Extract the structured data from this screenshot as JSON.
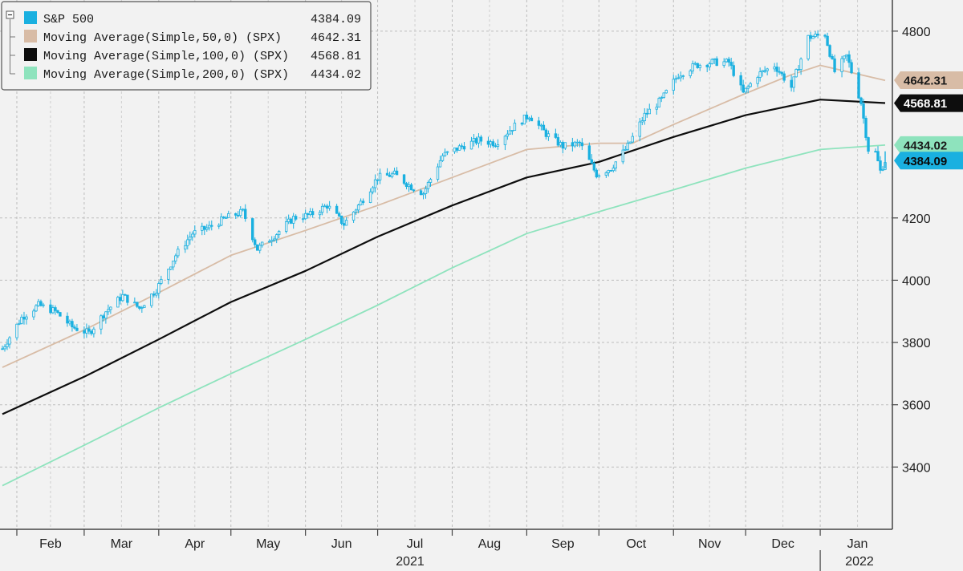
{
  "chart_data": {
    "type": "line",
    "ylim": [
      3200,
      4900
    ],
    "y_ticks": [
      3400,
      3600,
      3800,
      4000,
      4200,
      4800
    ],
    "grid": true,
    "legend_position": "top-left",
    "x_months": [
      {
        "label": "Feb",
        "x": "2021-02"
      },
      {
        "label": "Mar",
        "x": "2021-03"
      },
      {
        "label": "Apr",
        "x": "2021-04"
      },
      {
        "label": "May",
        "x": "2021-05"
      },
      {
        "label": "Jun",
        "x": "2021-06"
      },
      {
        "label": "Jul",
        "x": "2021-07"
      },
      {
        "label": "Aug",
        "x": "2021-08"
      },
      {
        "label": "Sep",
        "x": "2021-09"
      },
      {
        "label": "Oct",
        "x": "2021-10"
      },
      {
        "label": "Nov",
        "x": "2021-11"
      },
      {
        "label": "Dec",
        "x": "2021-12"
      },
      {
        "label": "Jan",
        "x": "2022-01"
      }
    ],
    "x_years": [
      {
        "label": "2021",
        "x": "2021-07"
      },
      {
        "label": "2022",
        "x": "2022-01"
      }
    ],
    "series": [
      {
        "name": "S&P 500",
        "last": "4384.09",
        "color": "#1ab0e0",
        "style": "candles",
        "x": [
          "2021-01-26",
          "2021-02-03",
          "2021-02-10",
          "2021-02-17",
          "2021-02-24",
          "2021-03-03",
          "2021-03-10",
          "2021-03-17",
          "2021-03-24",
          "2021-03-31",
          "2021-04-08",
          "2021-04-15",
          "2021-04-22",
          "2021-04-29",
          "2021-05-06",
          "2021-05-12",
          "2021-05-20",
          "2021-05-27",
          "2021-06-03",
          "2021-06-10",
          "2021-06-17",
          "2021-06-24",
          "2021-07-01",
          "2021-07-08",
          "2021-07-15",
          "2021-07-20",
          "2021-07-28",
          "2021-08-05",
          "2021-08-12",
          "2021-08-19",
          "2021-08-26",
          "2021-09-02",
          "2021-09-09",
          "2021-09-16",
          "2021-09-23",
          "2021-09-30",
          "2021-10-06",
          "2021-10-13",
          "2021-10-20",
          "2021-10-27",
          "2021-11-03",
          "2021-11-10",
          "2021-11-17",
          "2021-11-24",
          "2021-11-30",
          "2021-12-06",
          "2021-12-13",
          "2021-12-20",
          "2021-12-27",
          "2022-01-03",
          "2022-01-07",
          "2022-01-12",
          "2022-01-18",
          "2022-01-21",
          "2022-01-24",
          "2022-01-26",
          "2022-01-28"
        ],
        "values": [
          3780,
          3880,
          3920,
          3900,
          3850,
          3830,
          3900,
          3950,
          3910,
          3970,
          4080,
          4150,
          4170,
          4200,
          4220,
          4100,
          4150,
          4200,
          4210,
          4240,
          4180,
          4250,
          4330,
          4340,
          4300,
          4280,
          4400,
          4430,
          4450,
          4440,
          4490,
          4530,
          4470,
          4430,
          4440,
          4340,
          4360,
          4430,
          4530,
          4580,
          4660,
          4690,
          4700,
          4700,
          4600,
          4660,
          4690,
          4620,
          4780,
          4790,
          4670,
          4720,
          4570,
          4420,
          4410,
          4350,
          4384
        ]
      },
      {
        "name": "Moving Average(Simple,50,0) (SPX)",
        "last": "4642.31",
        "color": "#d8bca6",
        "style": "line",
        "x": [
          "2021-01-26",
          "2021-03-01",
          "2021-04-01",
          "2021-05-01",
          "2021-06-01",
          "2021-07-01",
          "2021-08-01",
          "2021-09-01",
          "2021-10-01",
          "2021-10-15",
          "2021-11-01",
          "2021-12-01",
          "2021-12-20",
          "2022-01-01",
          "2022-01-28"
        ],
        "values": [
          3720,
          3840,
          3960,
          4080,
          4160,
          4240,
          4330,
          4420,
          4440,
          4440,
          4500,
          4600,
          4660,
          4690,
          4642
        ]
      },
      {
        "name": "Moving Average(Simple,100,0) (SPX)",
        "last": "4568.81",
        "color": "#0d0d0d",
        "style": "line",
        "x": [
          "2021-01-26",
          "2021-03-01",
          "2021-04-01",
          "2021-05-01",
          "2021-06-01",
          "2021-07-01",
          "2021-08-01",
          "2021-09-01",
          "2021-10-01",
          "2021-11-01",
          "2021-12-01",
          "2022-01-01",
          "2022-01-28"
        ],
        "values": [
          3570,
          3690,
          3810,
          3930,
          4030,
          4140,
          4240,
          4330,
          4380,
          4460,
          4530,
          4580,
          4569
        ]
      },
      {
        "name": "Moving Average(Simple,200,0) (SPX)",
        "last": "4434.02",
        "color": "#8ee3bd",
        "style": "line",
        "x": [
          "2021-01-26",
          "2021-03-01",
          "2021-04-01",
          "2021-05-01",
          "2021-06-01",
          "2021-07-01",
          "2021-08-01",
          "2021-09-01",
          "2021-10-01",
          "2021-11-01",
          "2021-12-01",
          "2022-01-01",
          "2022-01-28"
        ],
        "values": [
          3340,
          3470,
          3590,
          3700,
          3810,
          3920,
          4040,
          4150,
          4220,
          4290,
          4360,
          4420,
          4434
        ]
      }
    ]
  }
}
